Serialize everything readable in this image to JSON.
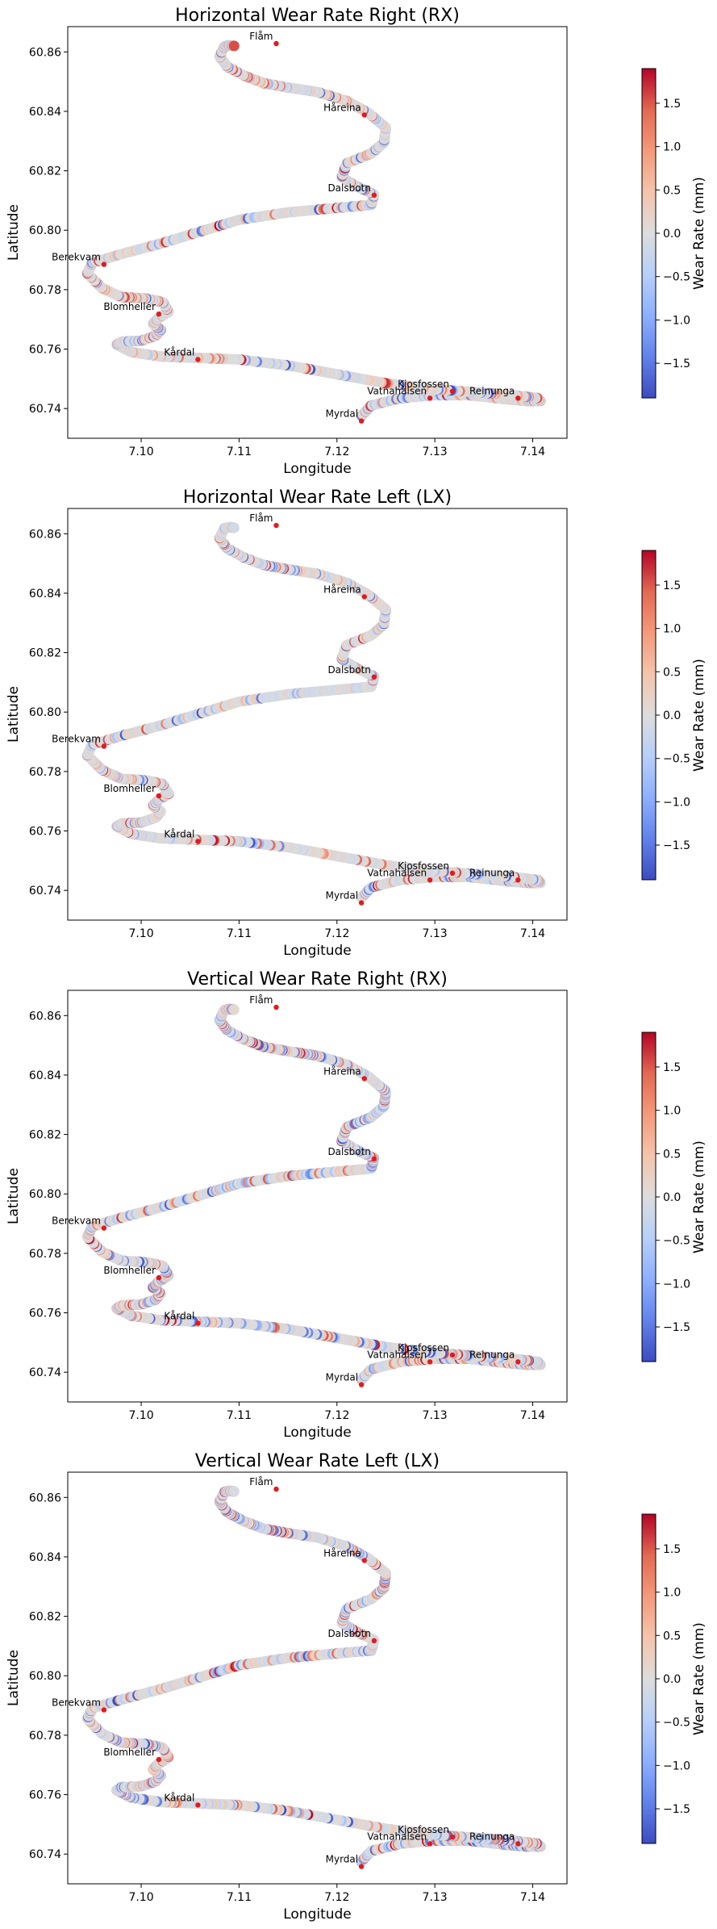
{
  "colorbar": {
    "colors": [
      "#3b4cc0",
      "#6282ea",
      "#8db0fe",
      "#b7cff9",
      "#dcdddd",
      "#f5c4ac",
      "#f49a7b",
      "#e26952",
      "#b40426"
    ],
    "range": [
      -1.9,
      1.9
    ],
    "ticks": [
      -1.5,
      -1.0,
      -0.5,
      0.0,
      0.5,
      1.0,
      1.5
    ],
    "tick_labels": [
      "−1.5",
      "−1.0",
      "−0.5",
      "0.0",
      "0.5",
      "1.0",
      "1.5"
    ],
    "label": "Wear Rate (mm)"
  },
  "stations": [
    {
      "name": "Flåm",
      "lon": 7.1138,
      "lat": 60.8628
    },
    {
      "name": "Håreina",
      "lon": 7.1228,
      "lat": 60.8388
    },
    {
      "name": "Dalsbotn",
      "lon": 7.1238,
      "lat": 60.8118
    },
    {
      "name": "Berekvam",
      "lon": 7.0962,
      "lat": 60.7885
    },
    {
      "name": "Blomheller",
      "lon": 7.1018,
      "lat": 60.7718
    },
    {
      "name": "Kårdal",
      "lon": 7.1058,
      "lat": 60.7565
    },
    {
      "name": "Kjosfossen",
      "lon": 7.1318,
      "lat": 60.7458
    },
    {
      "name": "Reinunga",
      "lon": 7.1385,
      "lat": 60.7435
    },
    {
      "name": "Vatnahalsen",
      "lon": 7.1295,
      "lat": 60.7435
    },
    {
      "name": "Myrdal",
      "lon": 7.1225,
      "lat": 60.7358
    }
  ],
  "route": {
    "lon": [
      7.1225,
      7.1235,
      7.1265,
      7.13,
      7.1335,
      7.137,
      7.1395,
      7.1408,
      7.1405,
      7.138,
      7.134,
      7.13,
      7.125,
      7.12,
      7.115,
      7.11,
      7.106,
      7.102,
      7.099,
      7.0975,
      7.098,
      7.1,
      7.1015,
      7.102,
      7.1012,
      7.1018,
      7.1028,
      7.1022,
      7.1005,
      7.098,
      7.096,
      7.0945,
      7.095,
      7.098,
      7.102,
      7.106,
      7.11,
      7.115,
      7.12,
      7.1235,
      7.1238,
      7.122,
      7.1205,
      7.121,
      7.1235,
      7.1248,
      7.125,
      7.1232,
      7.121,
      7.118,
      7.115,
      7.1125,
      7.1105,
      7.1088,
      7.108,
      7.1085,
      7.109,
      7.1095
    ],
    "lat": [
      60.7375,
      60.741,
      60.7435,
      60.7445,
      60.7445,
      60.7432,
      60.7425,
      60.7425,
      60.7435,
      60.7445,
      60.7455,
      60.7465,
      60.7485,
      60.7515,
      60.7545,
      60.7565,
      60.757,
      60.7575,
      60.759,
      60.7615,
      60.7625,
      60.7628,
      60.7645,
      60.7665,
      60.7685,
      60.7705,
      60.7725,
      60.7758,
      60.777,
      60.7775,
      60.7805,
      60.7855,
      60.789,
      60.792,
      60.7955,
      60.7995,
      60.8035,
      60.806,
      60.8075,
      60.8085,
      60.812,
      60.8148,
      60.8178,
      60.8225,
      60.8258,
      60.8295,
      60.8345,
      60.8395,
      60.8435,
      60.8465,
      60.848,
      60.8495,
      60.852,
      60.855,
      60.8585,
      60.8618,
      60.8622,
      60.862
    ]
  },
  "chart_data": [
    {
      "type": "scatter",
      "title": "Horizontal Wear Rate Right (RX)",
      "xlabel": "Longitude",
      "ylabel": "Latitude",
      "xlim": [
        7.0925,
        7.1435
      ],
      "ylim": [
        60.73,
        60.8685
      ],
      "xticks": [
        7.1,
        7.11,
        7.12,
        7.13,
        7.14
      ],
      "yticks": [
        60.74,
        60.76,
        60.78,
        60.8,
        60.82,
        60.84,
        60.86
      ],
      "seed": 11,
      "intensity": 0.75
    },
    {
      "type": "scatter",
      "title": "Horizontal Wear Rate Left (LX)",
      "xlabel": "Longitude",
      "ylabel": "Latitude",
      "xlim": [
        7.0925,
        7.1435
      ],
      "ylim": [
        60.73,
        60.8685
      ],
      "xticks": [
        7.1,
        7.11,
        7.12,
        7.13,
        7.14
      ],
      "yticks": [
        60.74,
        60.76,
        60.78,
        60.8,
        60.82,
        60.84,
        60.86
      ],
      "seed": 23,
      "intensity": 0.55
    },
    {
      "type": "scatter",
      "title": "Vertical Wear Rate Right (RX)",
      "xlabel": "Longitude",
      "ylabel": "Latitude",
      "xlim": [
        7.0925,
        7.1435
      ],
      "ylim": [
        60.73,
        60.8685
      ],
      "xticks": [
        7.1,
        7.11,
        7.12,
        7.13,
        7.14
      ],
      "yticks": [
        60.74,
        60.76,
        60.78,
        60.8,
        60.82,
        60.84,
        60.86
      ],
      "seed": 37,
      "intensity": 1.0
    },
    {
      "type": "scatter",
      "title": "Vertical Wear Rate Left (LX)",
      "xlabel": "Longitude",
      "ylabel": "Latitude",
      "xlim": [
        7.0925,
        7.1435
      ],
      "ylim": [
        60.73,
        60.8685
      ],
      "xticks": [
        7.1,
        7.11,
        7.12,
        7.13,
        7.14
      ],
      "yticks": [
        60.74,
        60.76,
        60.78,
        60.8,
        60.82,
        60.84,
        60.86
      ],
      "seed": 53,
      "intensity": 0.95
    }
  ]
}
